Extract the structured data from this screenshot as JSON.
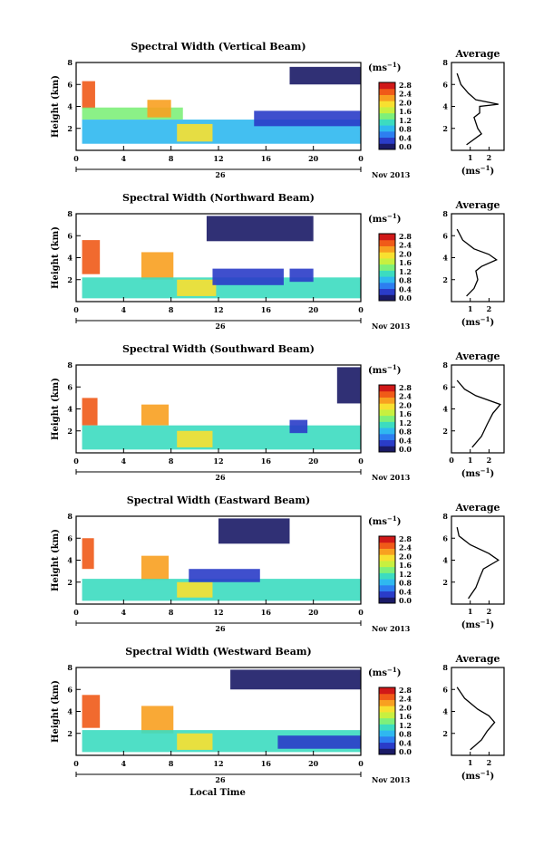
{
  "figure": {
    "xlabel": "Local Time",
    "date_label": "Nov 2013",
    "day_label": "26",
    "x_ticks": [
      "0",
      "4",
      "8",
      "12",
      "16",
      "20",
      "0"
    ],
    "y_ticks": [
      "2",
      "4",
      "6",
      "8"
    ],
    "ylabel": "Height (km)",
    "colorbar_unit_pre": "(ms",
    "colorbar_unit_exp": "−1",
    "colorbar_unit_post": ")",
    "colorbar_ticks": [
      "0.0",
      "0.4",
      "0.8",
      "1.2",
      "1.6",
      "2.0",
      "2.4",
      "2.8"
    ],
    "colorbar_colors": [
      "#1a1a66",
      "#2a3cc8",
      "#2d7ef0",
      "#2fb8f0",
      "#3cdcc0",
      "#7ef07a",
      "#c8f040",
      "#f8e030",
      "#f8a020",
      "#f05a18",
      "#d01818"
    ],
    "avg_title": "Average",
    "avg_y_ticks": [
      "2",
      "4",
      "6",
      "8"
    ],
    "avg_xlabel_pre": "(ms",
    "avg_xlabel_exp": "−1",
    "avg_xlabel_post": ")"
  },
  "chart_data": [
    {
      "type": "heatmap",
      "title": "Spectral Width (Vertical Beam)",
      "ylim": [
        0,
        8
      ],
      "xlim": [
        0,
        24
      ],
      "clim": [
        0,
        2.8
      ],
      "regions": [
        {
          "t0": 0.5,
          "t1": 1.6,
          "h0": 3.8,
          "h1": 6.3,
          "v": 2.5
        },
        {
          "t0": 0.5,
          "t1": 9.0,
          "h0": 2.8,
          "h1": 3.9,
          "v": 1.5
        },
        {
          "t0": 6.0,
          "t1": 8.0,
          "h0": 3.0,
          "h1": 4.6,
          "v": 2.2
        },
        {
          "t0": 0.5,
          "t1": 24,
          "h0": 0.6,
          "h1": 2.8,
          "v": 1.0
        },
        {
          "t0": 8.5,
          "t1": 11.5,
          "h0": 0.8,
          "h1": 2.4,
          "v": 1.8
        },
        {
          "t0": 15.0,
          "t1": 24,
          "h0": 2.2,
          "h1": 3.6,
          "v": 0.4
        },
        {
          "t0": 18.0,
          "t1": 24,
          "h0": 6.0,
          "h1": 7.6,
          "v": 0.2
        }
      ],
      "profile": {
        "speed": [
          0.8,
          1.6,
          1.4,
          1.2,
          1.5,
          1.5,
          2.5,
          1.3,
          0.9,
          0.5,
          0.3
        ],
        "height": [
          0.5,
          1.5,
          2.0,
          3.0,
          3.4,
          4.0,
          4.2,
          4.6,
          5.2,
          6.0,
          7.0
        ],
        "xticks": [
          "1",
          "2"
        ],
        "xlim": [
          0,
          2.8
        ]
      }
    },
    {
      "type": "heatmap",
      "title": "Spectral Width (Northward Beam)",
      "ylim": [
        0,
        8
      ],
      "xlim": [
        0,
        24
      ],
      "clim": [
        0,
        2.8
      ],
      "regions": [
        {
          "t0": 0.5,
          "t1": 2.0,
          "h0": 2.5,
          "h1": 5.6,
          "v": 2.3
        },
        {
          "t0": 5.5,
          "t1": 8.2,
          "h0": 2.0,
          "h1": 4.5,
          "v": 2.1
        },
        {
          "t0": 0.5,
          "t1": 24,
          "h0": 0.3,
          "h1": 2.2,
          "v": 1.1
        },
        {
          "t0": 8.5,
          "t1": 11.8,
          "h0": 0.5,
          "h1": 2.0,
          "v": 1.9
        },
        {
          "t0": 11.5,
          "t1": 17.5,
          "h0": 1.5,
          "h1": 3.0,
          "v": 0.3
        },
        {
          "t0": 18.0,
          "t1": 20.0,
          "h0": 1.8,
          "h1": 3.0,
          "v": 0.3
        },
        {
          "t0": 11.0,
          "t1": 20.0,
          "h0": 5.5,
          "h1": 7.8,
          "v": 0.2
        }
      ],
      "profile": {
        "speed": [
          0.8,
          1.2,
          1.4,
          1.3,
          1.6,
          2.4,
          2.0,
          1.2,
          0.6,
          0.3
        ],
        "height": [
          0.5,
          1.2,
          2.0,
          2.8,
          3.2,
          3.8,
          4.3,
          4.8,
          5.6,
          6.6
        ],
        "xticks": [
          "1",
          "2"
        ],
        "xlim": [
          0,
          2.8
        ]
      }
    },
    {
      "type": "heatmap",
      "title": "Spectral Width (Southward Beam)",
      "ylim": [
        0,
        8
      ],
      "xlim": [
        0,
        24
      ],
      "clim": [
        0,
        2.8
      ],
      "regions": [
        {
          "t0": 0.5,
          "t1": 1.8,
          "h0": 2.5,
          "h1": 5.0,
          "v": 2.4
        },
        {
          "t0": 5.5,
          "t1": 7.8,
          "h0": 2.5,
          "h1": 4.4,
          "v": 2.1
        },
        {
          "t0": 0.5,
          "t1": 24,
          "h0": 0.3,
          "h1": 2.5,
          "v": 1.2
        },
        {
          "t0": 8.5,
          "t1": 11.5,
          "h0": 0.5,
          "h1": 2.0,
          "v": 1.8
        },
        {
          "t0": 18.0,
          "t1": 19.5,
          "h0": 1.8,
          "h1": 3.0,
          "v": 0.3
        },
        {
          "t0": 22.0,
          "t1": 24,
          "h0": 4.5,
          "h1": 7.8,
          "v": 0.2
        }
      ],
      "profile": {
        "speed": [
          1.1,
          1.6,
          1.9,
          2.2,
          2.6,
          1.3,
          0.7,
          0.3
        ],
        "height": [
          0.5,
          1.5,
          2.6,
          3.6,
          4.4,
          5.2,
          5.8,
          6.6
        ],
        "xticks": [
          "0",
          "1",
          "2"
        ],
        "xlim": [
          0,
          2.8
        ]
      }
    },
    {
      "type": "heatmap",
      "title": "Spectral Width (Eastward Beam)",
      "ylim": [
        0,
        8
      ],
      "xlim": [
        0,
        24
      ],
      "clim": [
        0,
        2.8
      ],
      "regions": [
        {
          "t0": 0.5,
          "t1": 1.5,
          "h0": 3.2,
          "h1": 6.0,
          "v": 2.5
        },
        {
          "t0": 5.5,
          "t1": 7.8,
          "h0": 2.2,
          "h1": 4.4,
          "v": 2.1
        },
        {
          "t0": 0.5,
          "t1": 24,
          "h0": 0.3,
          "h1": 2.3,
          "v": 1.1
        },
        {
          "t0": 8.5,
          "t1": 11.5,
          "h0": 0.6,
          "h1": 2.0,
          "v": 1.9
        },
        {
          "t0": 9.5,
          "t1": 15.5,
          "h0": 2.0,
          "h1": 3.2,
          "v": 0.3
        },
        {
          "t0": 12.0,
          "t1": 18.0,
          "h0": 5.5,
          "h1": 7.8,
          "v": 0.2
        }
      ],
      "profile": {
        "speed": [
          0.9,
          1.3,
          1.5,
          1.7,
          2.5,
          2.0,
          1.0,
          0.4,
          0.3
        ],
        "height": [
          0.5,
          1.5,
          2.4,
          3.2,
          4.0,
          4.6,
          5.4,
          6.2,
          7.0
        ],
        "xticks": [
          "1",
          "2"
        ],
        "xlim": [
          0,
          2.8
        ]
      }
    },
    {
      "type": "heatmap",
      "title": "Spectral Width (Westward Beam)",
      "ylim": [
        0,
        8
      ],
      "xlim": [
        0,
        24
      ],
      "clim": [
        0,
        2.8
      ],
      "regions": [
        {
          "t0": 0.5,
          "t1": 2.0,
          "h0": 2.5,
          "h1": 5.5,
          "v": 2.4
        },
        {
          "t0": 5.5,
          "t1": 8.2,
          "h0": 2.0,
          "h1": 4.5,
          "v": 2.2
        },
        {
          "t0": 0.5,
          "t1": 24,
          "h0": 0.3,
          "h1": 2.3,
          "v": 1.1
        },
        {
          "t0": 8.5,
          "t1": 11.5,
          "h0": 0.5,
          "h1": 2.0,
          "v": 1.8
        },
        {
          "t0": 17.0,
          "t1": 24,
          "h0": 0.6,
          "h1": 1.8,
          "v": 0.4
        },
        {
          "t0": 13.0,
          "t1": 24,
          "h0": 6.0,
          "h1": 7.8,
          "v": 0.2
        }
      ],
      "profile": {
        "speed": [
          1.0,
          1.6,
          1.9,
          2.3,
          2.0,
          1.4,
          0.7,
          0.3
        ],
        "height": [
          0.5,
          1.4,
          2.2,
          3.0,
          3.6,
          4.2,
          5.2,
          6.2
        ],
        "xticks": [
          "1",
          "2"
        ],
        "xlim": [
          0,
          2.8
        ]
      }
    }
  ]
}
